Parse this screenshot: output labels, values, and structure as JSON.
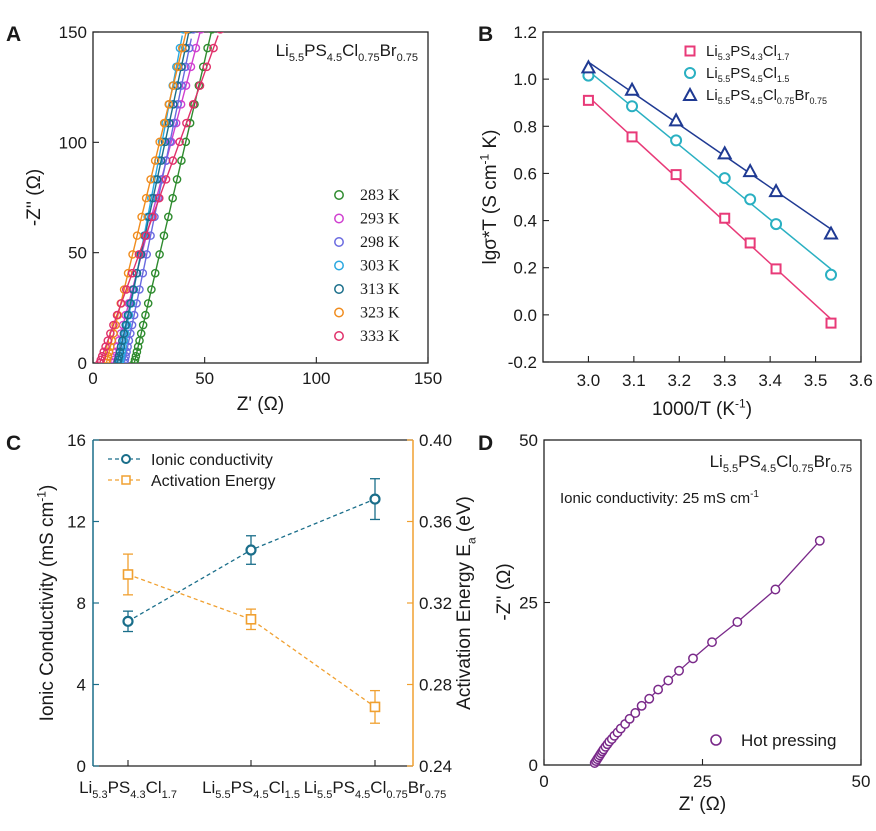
{
  "panels": {
    "A": {
      "letter": "A"
    },
    "B": {
      "letter": "B"
    },
    "C": {
      "letter": "C"
    },
    "D": {
      "letter": "D"
    }
  },
  "chart_data": [
    {
      "panel": "A",
      "type": "scatter",
      "title_parts": [
        "Li",
        "5.5",
        "PS",
        "4.5",
        "Cl",
        "0.75",
        "Br",
        "0.75"
      ],
      "xlabel_parts": [
        "Z' (",
        "Ω",
        ")"
      ],
      "ylabel_parts": [
        "-Z'' (",
        "Ω",
        ")"
      ],
      "xlim": [
        0,
        150
      ],
      "ylim": [
        0,
        150
      ],
      "xticks": [
        0,
        50,
        100,
        150
      ],
      "yticks": [
        0,
        50,
        100,
        150
      ],
      "series": [
        {
          "name": "283 K",
          "color": "#2e8b2e",
          "x_start": 18.5,
          "x_end": 53,
          "slope": 4.35
        },
        {
          "name": "293 K",
          "color": "#d040d0",
          "x_start": 9,
          "x_end": 48,
          "slope": 3.85
        },
        {
          "name": "298 K",
          "color": "#6a6ae0",
          "x_start": 14,
          "x_end": 44,
          "slope": 4.9
        },
        {
          "name": "303 K",
          "color": "#2aa8e0",
          "x_start": 12,
          "x_end": 40,
          "slope": 5.3
        },
        {
          "name": "313 K",
          "color": "#1a6e8a",
          "x_start": 11,
          "x_end": 43,
          "slope": 4.7
        },
        {
          "name": "323 K",
          "color": "#f08c1e",
          "x_start": 6,
          "x_end": 42,
          "slope": 4.2
        },
        {
          "name": "333 K",
          "color": "#e0306a",
          "x_start": 3,
          "x_end": 56,
          "slope": 2.8
        }
      ]
    },
    {
      "panel": "B",
      "type": "scatter",
      "xlabel": "1000/T (K",
      "xlabel_sup": "-1",
      "xlabel_end": ")",
      "ylabel": "lgσ*T (S cm",
      "ylabel_sup": "-1",
      "ylabel_end": " K)",
      "xlim": [
        2.9,
        3.6
      ],
      "ylim": [
        -0.2,
        1.2
      ],
      "xticks": [
        "3.0",
        "3.1",
        "3.2",
        "3.3",
        "3.4",
        "3.5",
        "3.6"
      ],
      "yticks": [
        "-0.2",
        "0.0",
        "0.2",
        "0.4",
        "0.6",
        "0.8",
        "1.0",
        "1.2"
      ],
      "x": [
        3.0,
        3.096,
        3.193,
        3.3,
        3.356,
        3.413,
        3.534
      ],
      "series": [
        {
          "name_parts": [
            "Li",
            "5.3",
            "PS",
            "4.3",
            "Cl",
            "1.7"
          ],
          "color": "#e83a78",
          "marker": "square",
          "values": [
            0.91,
            0.755,
            0.595,
            0.41,
            0.305,
            0.195,
            -0.035
          ]
        },
        {
          "name_parts": [
            "Li",
            "5.5",
            "PS",
            "4.5",
            "Cl",
            "1.5"
          ],
          "color": "#2ab0c2",
          "marker": "circle",
          "values": [
            1.015,
            0.885,
            0.74,
            0.58,
            0.49,
            0.385,
            0.17
          ]
        },
        {
          "name_parts": [
            "Li",
            "5.5",
            "PS",
            "4.5",
            "Cl",
            "0.75",
            "Br",
            "0.75"
          ],
          "color": "#1f3a93",
          "marker": "triangle",
          "values": [
            1.05,
            0.955,
            0.825,
            0.685,
            0.61,
            0.525,
            0.345
          ]
        }
      ]
    },
    {
      "panel": "C",
      "type": "line",
      "ylabel_left": "Ionic Conductivity (mS cm",
      "ylabel_left_sup": "-1",
      "ylabel_left_end": ")",
      "ylabel_right": "Activation Energy E",
      "ylabel_right_sub": "a",
      "ylabel_right_end": " (eV)",
      "ylim_left": [
        0,
        16
      ],
      "ylim_right": [
        0.24,
        0.4
      ],
      "yticks_left": [
        "0",
        "4",
        "8",
        "12",
        "16"
      ],
      "yticks_right": [
        "0.24",
        "0.28",
        "0.32",
        "0.36",
        "0.40"
      ],
      "categories": [
        [
          "Li",
          "5.3",
          "PS",
          "4.3",
          "Cl",
          "1.7"
        ],
        [
          "Li",
          "5.5",
          "PS",
          "4.5",
          "Cl",
          "1.5"
        ],
        [
          "Li",
          "5.5",
          "PS",
          "4.5",
          "Cl",
          "0.75",
          "Br",
          "0.75"
        ]
      ],
      "series": [
        {
          "name": "Ionic conductivity",
          "axis": "left",
          "color": "#1a6e8a",
          "marker": "circle",
          "values": [
            7.1,
            10.6,
            13.1
          ],
          "errors": [
            0.5,
            0.7,
            1.0
          ]
        },
        {
          "name": "Activation Energy",
          "axis": "right",
          "color": "#f0a030",
          "marker": "square",
          "values": [
            0.334,
            0.312,
            0.269
          ],
          "errors": [
            0.01,
            0.005,
            0.008
          ]
        }
      ]
    },
    {
      "panel": "D",
      "type": "scatter",
      "title_parts": [
        "Li",
        "5.5",
        "PS",
        "4.5",
        "Cl",
        "0.75",
        "Br",
        "0.75"
      ],
      "annotation": "Ionic conductivity: 25 mS cm",
      "annotation_sup": "-1",
      "xlabel_parts": [
        "Z' (",
        "Ω",
        ")"
      ],
      "ylabel_parts": [
        "-Z'' (",
        "Ω",
        ")"
      ],
      "xlim": [
        0,
        50
      ],
      "ylim": [
        0,
        50
      ],
      "xticks": [
        "0",
        "25",
        "50"
      ],
      "yticks": [
        "0",
        "25",
        "50"
      ],
      "series": [
        {
          "name": "Hot pressing",
          "color": "#7a2a8a",
          "x": [
            8.0,
            8.2,
            8.4,
            8.6,
            8.8,
            9.0,
            9.2,
            9.4,
            9.7,
            10.0,
            10.3,
            10.7,
            11.1,
            11.6,
            12.1,
            12.8,
            13.5,
            14.4,
            15.4,
            16.6,
            18.0,
            19.6,
            21.3,
            23.5,
            26.5,
            30.5,
            36.5,
            43.5
          ],
          "y": [
            0.3,
            0.6,
            0.9,
            1.2,
            1.5,
            1.8,
            2.1,
            2.4,
            2.8,
            3.2,
            3.6,
            4.0,
            4.5,
            5.0,
            5.6,
            6.3,
            7.1,
            8.0,
            9.1,
            10.2,
            11.6,
            13.0,
            14.5,
            16.4,
            18.9,
            22.0,
            27.0,
            34.5
          ]
        }
      ]
    }
  ]
}
